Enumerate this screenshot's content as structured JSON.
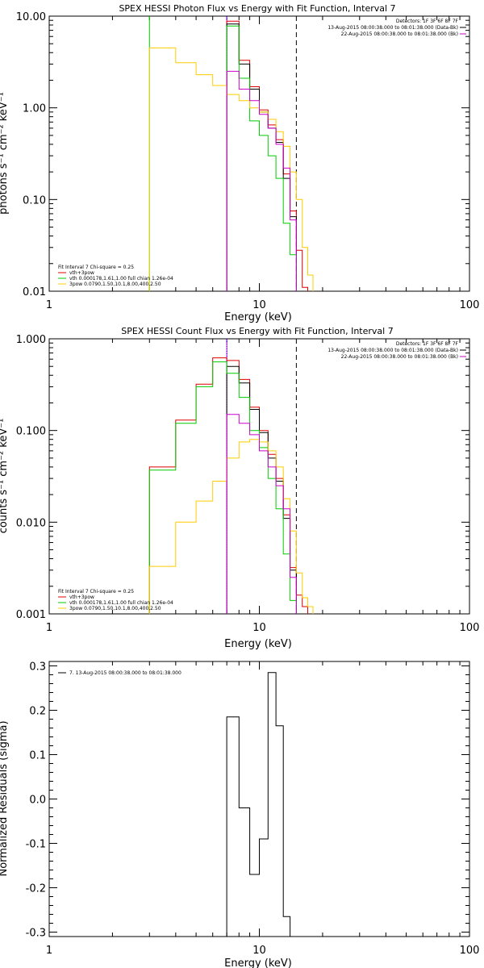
{
  "figure": {
    "panels": [
      {
        "id": "photon"
      },
      {
        "id": "count"
      },
      {
        "id": "resid"
      }
    ]
  },
  "chart_data": [
    {
      "type": "line",
      "title": "SPEX HESSI Photon Flux vs Energy with Fit Function, Interval 7",
      "xlabel": "Energy (keV)",
      "ylabel": "photons s⁻¹ cm⁻² keV⁻¹",
      "xscale": "log",
      "yscale": "log",
      "xlim": [
        1,
        100
      ],
      "ylim": [
        0.01,
        10
      ],
      "xticks": [
        "1",
        "10",
        "100"
      ],
      "yticks": [
        "0.01",
        "0.10",
        "1.00",
        "10.00"
      ],
      "legend_title": "Fit Interval 7   Chi-square = 0.25",
      "info_lines": [
        "Detectors: 1F 3F 6F 8F 7F",
        "13-Aug-2015 08:00:38.000 to 08:01:38.000 (Data-Bk)",
        "22-Aug-2015 08:00:38.000 to 08:01:38.000 (Bk)"
      ],
      "info_colors": [
        "#000000",
        "#000000",
        "#cc00cc"
      ],
      "vlines": [
        {
          "x": 3.0,
          "color": "#00cc00",
          "style": "solid"
        },
        {
          "x": 7.0,
          "color": "#cc00cc",
          "style": "solid"
        },
        {
          "x": 7.0,
          "color": "#0000cc",
          "style": "dotted"
        },
        {
          "x": 15.0,
          "color": "#000000",
          "style": "dashed"
        }
      ],
      "edges": [
        3,
        4,
        5,
        6,
        7,
        8,
        9,
        10,
        11,
        12,
        13,
        14,
        15,
        16,
        17,
        18
      ],
      "series": [
        {
          "name": "vth+3pow",
          "color": "#dd0000",
          "start": 7,
          "values": [
            8.8,
            3.3,
            1.7,
            0.95,
            0.65,
            0.45,
            0.19,
            0.075,
            0.028,
            0.011
          ]
        },
        {
          "name": "",
          "color": "#000000",
          "start": 7,
          "values": [
            8.2,
            3.0,
            1.6,
            0.9,
            0.6,
            0.42,
            0.17,
            0.065,
            null,
            null
          ]
        },
        {
          "name": "vth 0.000178,1.61,1.00  full chian 1.26e-04",
          "color": "#00cc00",
          "start": 7,
          "values": [
            7.8,
            2.1,
            0.72,
            0.5,
            0.3,
            0.17,
            0.055,
            0.025,
            null,
            null
          ]
        },
        {
          "name": "3pow 0.0790,1.50,10.1,8.00,400,2.50",
          "color": "#ffcc00",
          "start": 3,
          "values": [
            4.5,
            3.1,
            2.3,
            1.75,
            1.4,
            1.2,
            1.0,
            0.9,
            0.75,
            0.55,
            0.38,
            0.2,
            0.1,
            0.03,
            0.015
          ]
        },
        {
          "name": "",
          "color": "#cc00cc",
          "start": 7,
          "values": [
            2.5,
            1.6,
            1.2,
            0.85,
            0.6,
            0.4,
            0.22,
            0.06,
            null,
            null
          ]
        }
      ]
    },
    {
      "type": "line",
      "title": "SPEX HESSI Count Flux vs Energy with Fit Function, Interval 7",
      "xlabel": "Energy (keV)",
      "ylabel": "counts s⁻¹ cm⁻² keV⁻¹",
      "xscale": "log",
      "yscale": "log",
      "xlim": [
        1,
        100
      ],
      "ylim": [
        0.001,
        1
      ],
      "xticks": [
        "1",
        "10",
        "100"
      ],
      "yticks": [
        "0.001",
        "0.010",
        "0.100",
        "1.000"
      ],
      "legend_title": "Fit Interval 7   Chi-square = 0.25",
      "info_lines": [
        "Detectors: 1F 3F 6F 8F 7F",
        "13-Aug-2015 08:00:38.000 to 08:01:38.000 (Data-Bk)",
        "22-Aug-2015 08:00:38.000 to 08:01:38.000 (Bk)"
      ],
      "info_colors": [
        "#000000",
        "#000000",
        "#cc00cc"
      ],
      "vlines": [
        {
          "x": 7.0,
          "color": "#cc00cc",
          "style": "solid"
        },
        {
          "x": 7.0,
          "color": "#0000cc",
          "style": "dotted"
        },
        {
          "x": 15.0,
          "color": "#000000",
          "style": "dashed"
        }
      ],
      "edges": [
        3,
        4,
        5,
        6,
        7,
        8,
        9,
        10,
        11,
        12,
        13,
        14,
        15,
        16,
        17,
        18
      ],
      "series": [
        {
          "name": "vth+3pow",
          "color": "#dd0000",
          "start": 3,
          "values": [
            0.04,
            0.13,
            0.32,
            0.62,
            0.58,
            0.36,
            0.18,
            0.1,
            0.055,
            0.03,
            0.012,
            0.0032,
            0.0016,
            0.0012,
            null
          ]
        },
        {
          "name": "",
          "color": "#000000",
          "start": 7,
          "values": [
            0.5,
            0.33,
            0.17,
            0.095,
            0.05,
            0.028,
            0.011,
            0.003,
            null,
            null
          ]
        },
        {
          "name": "vth 0.000178,1.61,1.00  full chian 1.26e-04",
          "color": "#00cc00",
          "start": 3,
          "values": [
            0.037,
            0.12,
            0.3,
            0.56,
            0.42,
            0.23,
            0.1,
            0.065,
            0.03,
            0.014,
            0.0045,
            0.0014,
            null,
            null,
            null
          ]
        },
        {
          "name": "3pow 0.0790,1.50,10.1,8.00,400,2.50",
          "color": "#ffcc00",
          "start": 3,
          "values": [
            0.0033,
            0.01,
            0.017,
            0.028,
            0.05,
            0.075,
            0.08,
            0.075,
            0.06,
            0.04,
            0.018,
            0.008,
            0.0028,
            0.0015,
            0.0012
          ]
        },
        {
          "name": "",
          "color": "#cc00cc",
          "start": 7,
          "values": [
            0.15,
            0.12,
            0.09,
            0.06,
            0.04,
            0.025,
            0.014,
            0.0025,
            null,
            null
          ]
        }
      ]
    },
    {
      "type": "line",
      "title": "",
      "xlabel": "Energy (keV)",
      "ylabel": "Normalized Residuals (sigma)",
      "xscale": "log",
      "yscale": "linear",
      "xlim": [
        1,
        100
      ],
      "ylim": [
        -0.31,
        0.31
      ],
      "xticks": [
        "1",
        "10",
        "100"
      ],
      "yticks": [
        "-0.3",
        "-0.2",
        "-0.1",
        "0.0",
        "0.1",
        "0.2",
        "0.3"
      ],
      "legend_entry": "7. 13-Aug-2015 08:00:38.000 to 08:01:38.000",
      "edges": [
        7,
        8,
        9,
        10,
        11,
        12,
        13,
        14,
        15
      ],
      "series": [
        {
          "name": "7. 13-Aug-2015 08:00:38.000 to 08:01:38.000",
          "color": "#000000",
          "values": [
            0.185,
            -0.02,
            -0.17,
            -0.09,
            0.285,
            0.165,
            -0.265,
            -0.31
          ]
        }
      ]
    }
  ]
}
